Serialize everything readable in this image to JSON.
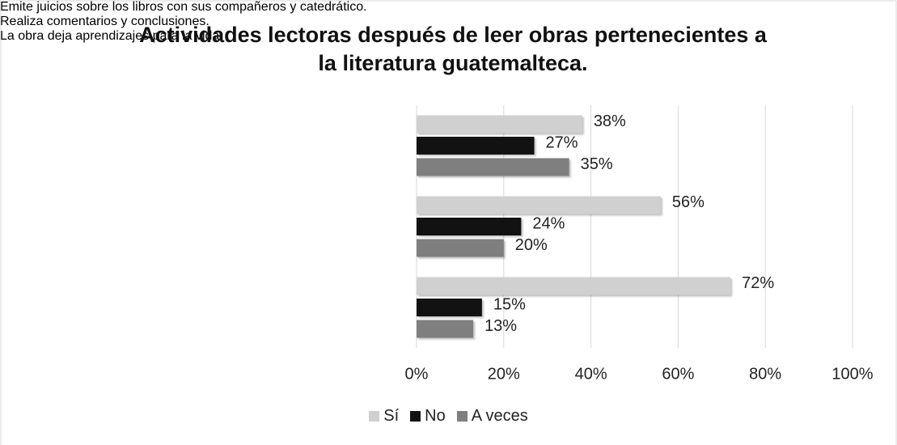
{
  "chart_data": {
    "type": "bar",
    "orientation": "horizontal",
    "title": "Actividades lectoras después de leer obras pertenecientes a la literatura guatemalteca.",
    "categories": [
      "Emite juicios sobre los libros con sus compañeros y catedrático.",
      "Realiza comentarios y conclusiones.",
      "La obra deja aprendizajes para la vida."
    ],
    "series": [
      {
        "name": "Sí",
        "color": "#d0d0d0",
        "values": [
          38,
          56,
          72
        ],
        "value_labels": [
          "38%",
          "56%",
          "72%"
        ]
      },
      {
        "name": "No",
        "color": "#121212",
        "values": [
          27,
          24,
          15
        ],
        "value_labels": [
          "27%",
          "24%",
          "15%"
        ]
      },
      {
        "name": "A veces",
        "color": "#7f7f7f",
        "values": [
          35,
          20,
          13
        ],
        "value_labels": [
          "35%",
          "20%",
          "13%"
        ]
      }
    ],
    "xlim": [
      0,
      100
    ],
    "xticks": [
      {
        "value": 0,
        "label": "0%"
      },
      {
        "value": 20,
        "label": "20%"
      },
      {
        "value": 40,
        "label": "40%"
      },
      {
        "value": 60,
        "label": "60%"
      },
      {
        "value": 80,
        "label": "80%"
      },
      {
        "value": 100,
        "label": "100%"
      }
    ],
    "grid": true,
    "legend": "bottom"
  }
}
